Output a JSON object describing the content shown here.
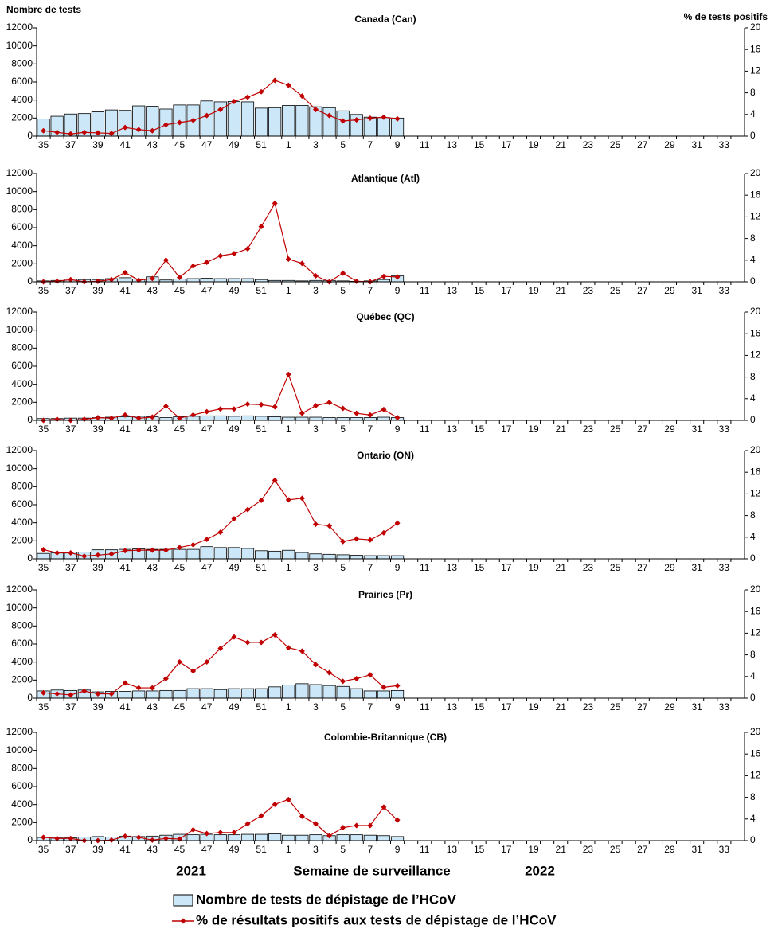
{
  "chart_data": [
    {
      "type": "combo",
      "title": "Canada (Can)",
      "y_label": "Nombre de tests",
      "y2_label": "% de tests positifs",
      "categories": [
        "35",
        null,
        "37",
        null,
        "39",
        null,
        "41",
        null,
        "43",
        null,
        "45",
        null,
        "47",
        null,
        "49",
        null,
        "51",
        null,
        "1",
        null,
        "3",
        null,
        "5",
        null,
        "7",
        null,
        "9",
        null,
        "11",
        null,
        "13",
        null,
        "15",
        null,
        "17",
        null,
        "19",
        null,
        "21",
        null,
        "23",
        null,
        "25",
        null,
        "27",
        null,
        "29",
        null,
        "31",
        null,
        "33",
        null
      ],
      "ylim": [
        0,
        12000
      ],
      "yticks": [
        0,
        2000,
        4000,
        6000,
        8000,
        10000,
        12000
      ],
      "y2lim": [
        0,
        20
      ],
      "y2ticks": [
        0,
        4,
        8,
        12,
        16,
        20
      ],
      "series": [
        {
          "name": "Nombre de tests de dépistage de l’HCoV",
          "type": "bar",
          "color": "#cce8f8",
          "values": [
            1900,
            2200,
            2450,
            2500,
            2700,
            2900,
            2850,
            3350,
            3300,
            3000,
            3450,
            3450,
            3900,
            3800,
            3850,
            3800,
            3100,
            3150,
            3400,
            3400,
            3250,
            3150,
            2800,
            2400,
            2100,
            2050,
            2000,
            null,
            null,
            null,
            null,
            null,
            null,
            null,
            null,
            null,
            null,
            null,
            null,
            null,
            null,
            null,
            null,
            null,
            null,
            null,
            null,
            null,
            null,
            null,
            null,
            null
          ]
        },
        {
          "name": "% de résultats positifs aux tests de dépistage de l’HCoV",
          "type": "line",
          "axis": "y2",
          "color": "#c00000",
          "values": [
            1.0,
            0.7,
            0.4,
            0.7,
            0.6,
            0.5,
            1.6,
            1.2,
            1.0,
            2.1,
            2.5,
            2.9,
            3.8,
            4.9,
            6.4,
            7.2,
            8.2,
            10.3,
            9.4,
            7.4,
            4.9,
            3.8,
            2.8,
            3.0,
            3.3,
            3.5,
            3.2,
            null,
            null,
            null,
            null,
            null,
            null,
            null,
            null,
            null,
            null,
            null,
            null,
            null,
            null,
            null,
            null,
            null,
            null,
            null,
            null,
            null,
            null,
            null,
            null,
            null
          ]
        }
      ]
    },
    {
      "type": "combo",
      "title": "Atlantique (Atl)",
      "categories": [
        "35",
        null,
        "37",
        null,
        "39",
        null,
        "41",
        null,
        "43",
        null,
        "45",
        null,
        "47",
        null,
        "49",
        null,
        "51",
        null,
        "1",
        null,
        "3",
        null,
        "5",
        null,
        "7",
        null,
        "9",
        null,
        "11",
        null,
        "13",
        null,
        "15",
        null,
        "17",
        null,
        "19",
        null,
        "21",
        null,
        "23",
        null,
        "25",
        null,
        "27",
        null,
        "29",
        null,
        "31",
        null,
        "33",
        null
      ],
      "ylim": [
        0,
        12000
      ],
      "yticks": [
        0,
        2000,
        4000,
        6000,
        8000,
        10000,
        12000
      ],
      "y2lim": [
        0,
        20
      ],
      "y2ticks": [
        0,
        4,
        8,
        12,
        16,
        20
      ],
      "series": [
        {
          "type": "bar",
          "color": "#cce8f8",
          "values": [
            100,
            150,
            300,
            250,
            250,
            350,
            450,
            300,
            550,
            200,
            300,
            350,
            400,
            350,
            350,
            350,
            250,
            150,
            150,
            100,
            150,
            150,
            100,
            50,
            100,
            250,
            650,
            null,
            null,
            null,
            null,
            null,
            null,
            null,
            null,
            null,
            null,
            null,
            null,
            null,
            null,
            null,
            null,
            null,
            null,
            null,
            null,
            null,
            null,
            null,
            null,
            null
          ]
        },
        {
          "type": "line",
          "axis": "y2",
          "color": "#c00000",
          "values": [
            0,
            0.1,
            0.4,
            0,
            0.1,
            0.4,
            1.7,
            0.3,
            0.6,
            4.0,
            0.8,
            2.9,
            3.6,
            4.8,
            5.2,
            6.1,
            10.2,
            14.5,
            4.2,
            3.4,
            1.1,
            0,
            1.6,
            0.1,
            0,
            1.0,
            0.9,
            null,
            null,
            null,
            null,
            null,
            null,
            null,
            null,
            null,
            null,
            null,
            null,
            null,
            null,
            null,
            null,
            null,
            null,
            null,
            null,
            null,
            null,
            null,
            null,
            null
          ]
        }
      ]
    },
    {
      "type": "combo",
      "title": "Québec (QC)",
      "categories": [
        "35",
        null,
        "37",
        null,
        "39",
        null,
        "41",
        null,
        "43",
        null,
        "45",
        null,
        "47",
        null,
        "49",
        null,
        "51",
        null,
        "1",
        null,
        "3",
        null,
        "5",
        null,
        "7",
        null,
        "9",
        null,
        "11",
        null,
        "13",
        null,
        "15",
        null,
        "17",
        null,
        "19",
        null,
        "21",
        null,
        "23",
        null,
        "25",
        null,
        "27",
        null,
        "29",
        null,
        "31",
        null,
        "33",
        null
      ],
      "ylim": [
        0,
        12000
      ],
      "yticks": [
        0,
        2000,
        4000,
        6000,
        8000,
        10000,
        12000
      ],
      "y2lim": [
        0,
        20
      ],
      "y2ticks": [
        0,
        4,
        8,
        12,
        16,
        20
      ],
      "series": [
        {
          "type": "bar",
          "color": "#cce8f8",
          "values": [
            200,
            200,
            250,
            250,
            300,
            350,
            400,
            450,
            400,
            300,
            400,
            450,
            500,
            500,
            450,
            500,
            450,
            400,
            350,
            350,
            350,
            300,
            300,
            300,
            300,
            350,
            300,
            null,
            null,
            null,
            null,
            null,
            null,
            null,
            null,
            null,
            null,
            null,
            null,
            null,
            null,
            null,
            null,
            null,
            null,
            null,
            null,
            null,
            null,
            null,
            null,
            null
          ]
        },
        {
          "type": "line",
          "axis": "y2",
          "color": "#c00000",
          "values": [
            0,
            0.2,
            0,
            0.2,
            0.5,
            0.4,
            1.0,
            0.4,
            0.6,
            2.6,
            0.4,
            1.0,
            1.6,
            2.1,
            2.1,
            3.0,
            2.9,
            2.5,
            8.5,
            1.3,
            2.7,
            3.3,
            2.2,
            1.3,
            1.0,
            2.0,
            0.5,
            null,
            null,
            null,
            null,
            null,
            null,
            null,
            null,
            null,
            null,
            null,
            null,
            null,
            null,
            null,
            null,
            null,
            null,
            null,
            null,
            null,
            null,
            null,
            null,
            null
          ]
        }
      ]
    },
    {
      "type": "combo",
      "title": "Ontario (ON)",
      "categories": [
        "35",
        null,
        "37",
        null,
        "39",
        null,
        "41",
        null,
        "43",
        null,
        "45",
        null,
        "47",
        null,
        "49",
        null,
        "51",
        null,
        "1",
        null,
        "3",
        null,
        "5",
        null,
        "7",
        null,
        "9",
        null,
        "11",
        null,
        "13",
        null,
        "15",
        null,
        "17",
        null,
        "19",
        null,
        "21",
        null,
        "23",
        null,
        "25",
        null,
        "27",
        null,
        "29",
        null,
        "31",
        null,
        "33",
        null
      ],
      "ylim": [
        0,
        12000
      ],
      "yticks": [
        0,
        2000,
        4000,
        6000,
        8000,
        10000,
        12000
      ],
      "y2lim": [
        0,
        20
      ],
      "y2ticks": [
        0,
        4,
        8,
        12,
        16,
        20
      ],
      "series": [
        {
          "type": "bar",
          "color": "#cce8f8",
          "values": [
            600,
            650,
            750,
            750,
            1000,
            1000,
            1050,
            1100,
            1050,
            1050,
            1050,
            1050,
            1350,
            1250,
            1250,
            1150,
            900,
            850,
            950,
            700,
            550,
            500,
            450,
            400,
            350,
            350,
            350,
            null,
            null,
            null,
            null,
            null,
            null,
            null,
            null,
            null,
            null,
            null,
            null,
            null,
            null,
            null,
            null,
            null,
            null,
            null,
            null,
            null,
            null,
            null,
            null,
            null
          ]
        },
        {
          "type": "line",
          "axis": "y2",
          "color": "#c00000",
          "values": [
            1.7,
            1.1,
            1.1,
            0.5,
            0.7,
            0.9,
            1.5,
            1.6,
            1.6,
            1.6,
            2.1,
            2.6,
            3.6,
            4.9,
            7.4,
            9.1,
            10.8,
            14.5,
            10.9,
            11.2,
            6.4,
            6.1,
            3.2,
            3.7,
            3.5,
            4.8,
            6.6,
            null,
            null,
            null,
            null,
            null,
            null,
            null,
            null,
            null,
            null,
            null,
            null,
            null,
            null,
            null,
            null,
            null,
            null,
            null,
            null,
            null,
            null,
            null,
            null,
            null
          ]
        }
      ]
    },
    {
      "type": "combo",
      "title": "Prairies (Pr)",
      "categories": [
        "35",
        null,
        "37",
        null,
        "39",
        null,
        "41",
        null,
        "43",
        null,
        "45",
        null,
        "47",
        null,
        "49",
        null,
        "51",
        null,
        "1",
        null,
        "3",
        null,
        "5",
        null,
        "7",
        null,
        "9",
        null,
        "11",
        null,
        "13",
        null,
        "15",
        null,
        "17",
        null,
        "19",
        null,
        "21",
        null,
        "23",
        null,
        "25",
        null,
        "27",
        null,
        "29",
        null,
        "31",
        null,
        "33",
        null
      ],
      "ylim": [
        0,
        12000
      ],
      "yticks": [
        0,
        2000,
        4000,
        6000,
        8000,
        10000,
        12000
      ],
      "y2lim": [
        0,
        20
      ],
      "y2ticks": [
        0,
        4,
        8,
        12,
        16,
        20
      ],
      "series": [
        {
          "type": "bar",
          "color": "#cce8f8",
          "values": [
            800,
            900,
            850,
            900,
            700,
            750,
            750,
            800,
            800,
            850,
            850,
            1050,
            1050,
            950,
            1050,
            1050,
            1050,
            1250,
            1450,
            1600,
            1500,
            1400,
            1300,
            1050,
            800,
            800,
            850,
            null,
            null,
            null,
            null,
            null,
            null,
            null,
            null,
            null,
            null,
            null,
            null,
            null,
            null,
            null,
            null,
            null,
            null,
            null,
            null,
            null,
            null,
            null,
            null,
            null
          ]
        },
        {
          "type": "line",
          "axis": "y2",
          "color": "#c00000",
          "values": [
            1.0,
            0.8,
            0.6,
            1.3,
            0.8,
            0.8,
            2.8,
            1.9,
            1.9,
            3.6,
            6.7,
            5.0,
            6.7,
            9.2,
            11.3,
            10.3,
            10.3,
            11.7,
            9.3,
            8.7,
            6.2,
            4.7,
            3.1,
            3.6,
            4.3,
            2.0,
            2.3,
            null,
            null,
            null,
            null,
            null,
            null,
            null,
            null,
            null,
            null,
            null,
            null,
            null,
            null,
            null,
            null,
            null,
            null,
            null,
            null,
            null,
            null,
            null,
            null,
            null
          ]
        }
      ]
    },
    {
      "type": "combo",
      "title": "Colombie-Britannique (CB)",
      "x_label": "Semaine de surveillance",
      "year_labels": [
        "2021",
        "2022"
      ],
      "categories": [
        "35",
        null,
        "37",
        null,
        "39",
        null,
        "41",
        null,
        "43",
        null,
        "45",
        null,
        "47",
        null,
        "49",
        null,
        "51",
        null,
        "1",
        null,
        "3",
        null,
        "5",
        null,
        "7",
        null,
        "9",
        null,
        "11",
        null,
        "13",
        null,
        "15",
        null,
        "17",
        null,
        "19",
        null,
        "21",
        null,
        "23",
        null,
        "25",
        null,
        "27",
        null,
        "29",
        null,
        "31",
        null,
        "33",
        null
      ],
      "ylim": [
        0,
        12000
      ],
      "yticks": [
        0,
        2000,
        4000,
        6000,
        8000,
        10000,
        12000
      ],
      "y2lim": [
        0,
        20
      ],
      "y2ticks": [
        0,
        4,
        8,
        12,
        16,
        20
      ],
      "series": [
        {
          "type": "bar",
          "color": "#cce8f8",
          "values": [
            350,
            300,
            300,
            400,
            450,
            400,
            500,
            450,
            500,
            600,
            700,
            650,
            700,
            650,
            650,
            700,
            700,
            750,
            600,
            600,
            650,
            550,
            650,
            650,
            600,
            550,
            450,
            null,
            null,
            null,
            null,
            null,
            null,
            null,
            null,
            null,
            null,
            null,
            null,
            null,
            null,
            null,
            null,
            null,
            null,
            null,
            null,
            null,
            null,
            null,
            null,
            null
          ]
        },
        {
          "type": "line",
          "axis": "y2",
          "color": "#c00000",
          "values": [
            0.6,
            0.4,
            0.4,
            0,
            0,
            0.1,
            0.8,
            0.6,
            0.1,
            0.4,
            0.3,
            2.0,
            1.3,
            1.5,
            1.5,
            3.1,
            4.6,
            6.7,
            7.6,
            4.5,
            3.1,
            0.9,
            2.4,
            2.8,
            2.8,
            6.2,
            3.8,
            null,
            null,
            null,
            null,
            null,
            null,
            null,
            null,
            null,
            null,
            null,
            null,
            null,
            null,
            null,
            null,
            null,
            null,
            null,
            null,
            null,
            null,
            null,
            null,
            null
          ]
        }
      ]
    }
  ]
}
